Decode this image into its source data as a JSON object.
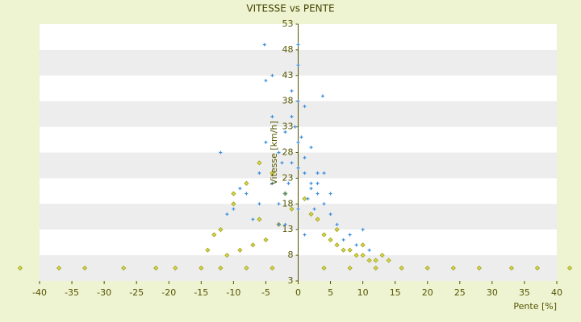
{
  "chart_data": {
    "type": "scatter",
    "title": "VITESSE vs PENTE",
    "xlabel": "Pente [%]",
    "ylabel": "Vitesse [km/h]",
    "xlim": [
      -40,
      40
    ],
    "xticks": [
      -40,
      -35,
      -30,
      -25,
      -20,
      -15,
      -10,
      -5,
      0,
      5,
      10,
      15,
      20,
      25,
      30,
      35,
      40
    ],
    "ylim": [
      3,
      53
    ],
    "yticks": [
      3,
      8,
      13,
      18,
      23,
      28,
      33,
      38,
      43,
      48,
      53
    ],
    "series": [
      {
        "name": "Vitesse",
        "color": "#3b8ede",
        "marker": "plus",
        "x": [
          -5,
          -3,
          -1,
          0,
          1,
          2,
          3,
          -2,
          -4,
          4,
          5,
          -6,
          6,
          -8,
          -10,
          -12,
          8,
          10,
          -1,
          0,
          1,
          -3,
          3,
          2,
          -2,
          0,
          -7,
          7,
          -9,
          9,
          -0.5,
          0.5,
          -1.5,
          1.5,
          -2.5,
          2.5,
          -11,
          11,
          -5,
          -4,
          0,
          2,
          -3,
          1,
          4,
          -6,
          5,
          -2,
          0,
          3,
          -5.2,
          0,
          -4,
          3.8,
          -1,
          1
        ],
        "y": [
          30,
          28,
          26,
          25,
          24,
          22,
          20,
          32,
          22,
          18,
          16,
          24,
          14,
          20,
          17,
          28,
          12,
          13,
          35,
          30,
          27,
          18,
          24,
          29,
          20,
          38,
          15,
          11,
          21,
          10,
          33,
          31,
          22,
          19,
          26,
          17,
          16,
          9,
          42,
          35,
          45,
          21,
          14,
          12,
          24,
          18,
          20,
          14,
          17,
          22,
          49,
          49,
          43,
          39,
          40,
          37
        ]
      },
      {
        "name": "Pente",
        "color": "#a0a020",
        "marker": "diamond",
        "x": [
          -43,
          -37,
          -33,
          -27,
          -22,
          -19,
          -15,
          -12,
          -8,
          -4,
          4,
          8,
          12,
          16,
          20,
          24,
          28,
          33,
          37,
          42,
          -14,
          -12,
          -10,
          -8,
          -6,
          -4,
          -2,
          2,
          4,
          6,
          8,
          10,
          12,
          14,
          -11,
          -9,
          -7,
          -5,
          -3,
          -1,
          1,
          3,
          5,
          7,
          9,
          11,
          -13,
          -10,
          -6,
          6,
          10,
          13
        ],
        "y": [
          5.5,
          5.5,
          5.5,
          5.5,
          5.5,
          5.5,
          5.5,
          5.5,
          5.5,
          5.5,
          5.5,
          5.5,
          5.5,
          5.5,
          5.5,
          5.5,
          5.5,
          5.5,
          5.5,
          5.5,
          9,
          13,
          18,
          22,
          26,
          24,
          20,
          16,
          12,
          10,
          9,
          8,
          7,
          7,
          8,
          9,
          10,
          11,
          14,
          17,
          19,
          15,
          11,
          9,
          8,
          7,
          12,
          20,
          15,
          13,
          10,
          8
        ]
      }
    ]
  }
}
